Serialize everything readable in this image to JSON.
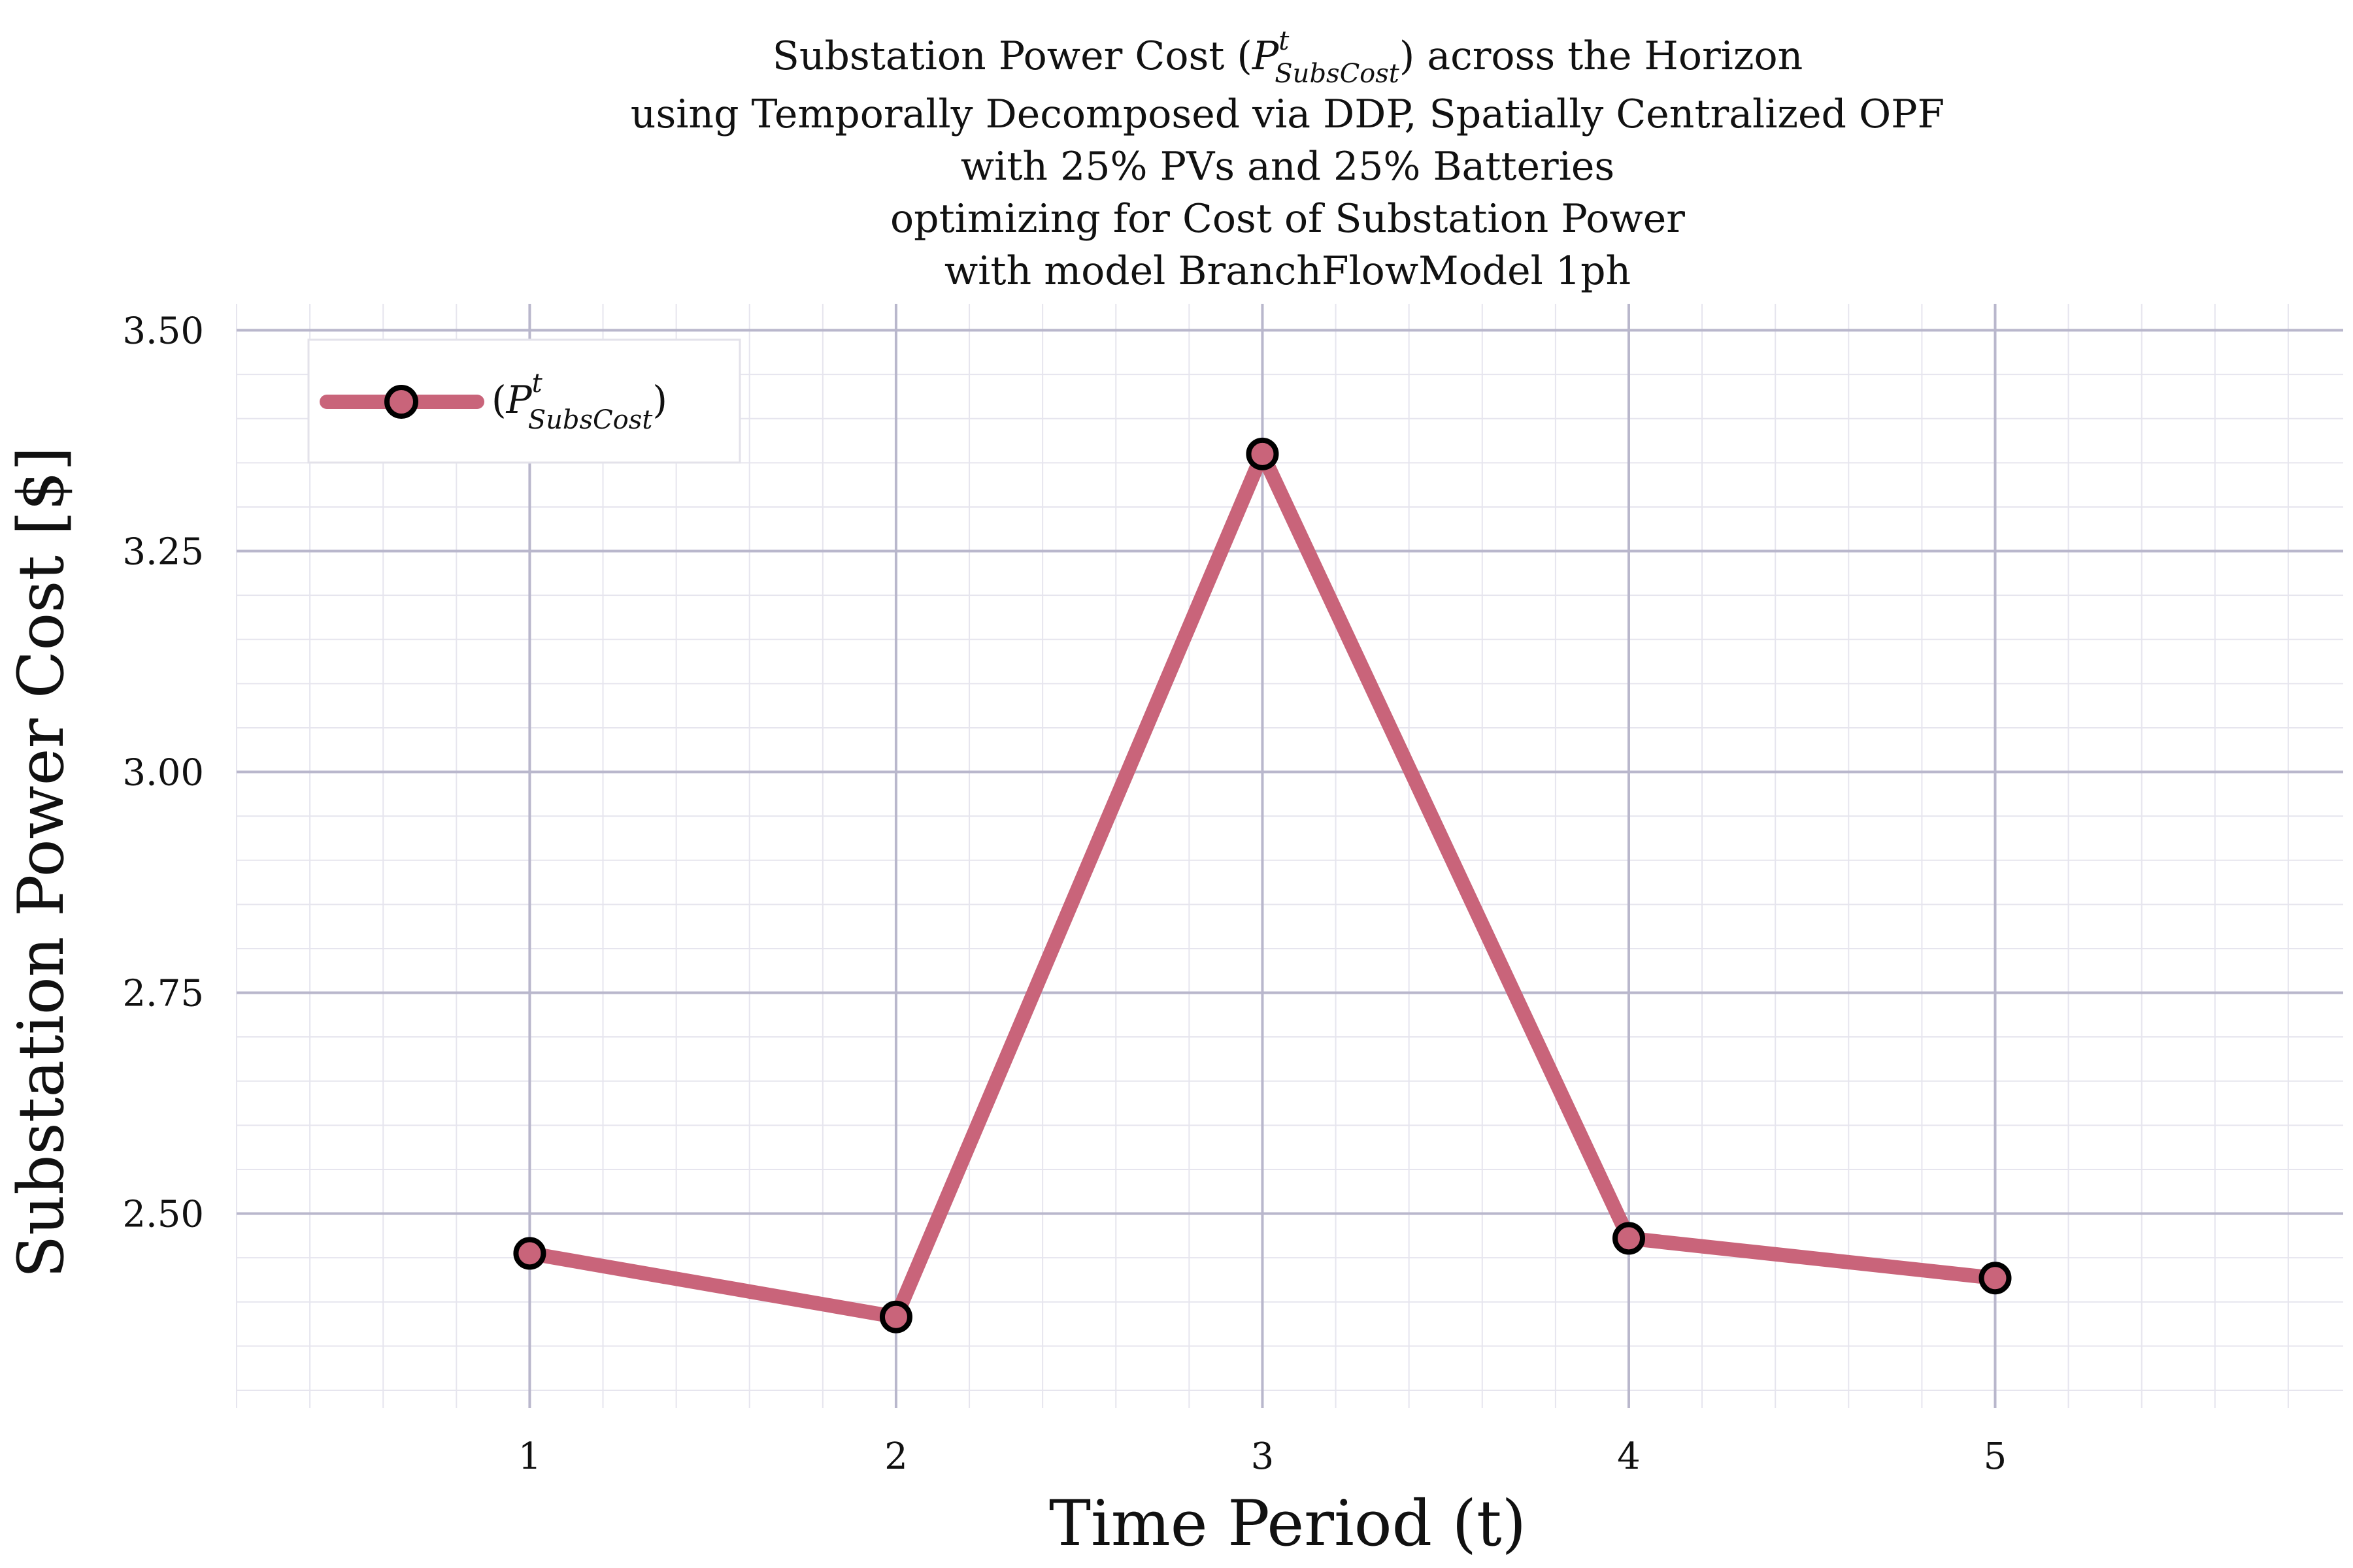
{
  "chart_data": {
    "type": "line",
    "title_lines": [
      "Substation Power Cost (P^t_SubsCost) across the Horizon",
      "using Temporally Decomposed via DDP, Spatially Centralized OPF",
      "with 25% PVs and 25% Batteries",
      "optimizing for Cost of Substation Power",
      "with model BranchFlowModel 1ph"
    ],
    "title_parts": {
      "prefix": "Substation Power Cost (",
      "symbol": "P",
      "superscript": "t",
      "subscript": "SubsCost",
      "suffix": ") across the Horizon"
    },
    "xlabel": "Time Period (t)",
    "ylabel": "Substation Power Cost [$]",
    "x": [
      1,
      2,
      3,
      4,
      5
    ],
    "series": [
      {
        "name": "(P^t_SubsCost)",
        "values": [
          2.455,
          2.383,
          3.36,
          2.472,
          2.427
        ],
        "color": "#c9647a",
        "marker_edge": "#000000"
      }
    ],
    "xlim": [
      0.2,
      5.95
    ],
    "ylim": [
      2.28,
      3.53
    ],
    "xticks": [
      "1",
      "2",
      "3",
      "4",
      "5"
    ],
    "xtick_values": [
      1,
      2,
      3,
      4,
      5
    ],
    "yticks": [
      "2.50",
      "2.75",
      "3.00",
      "3.25",
      "3.50"
    ],
    "ytick_values": [
      2.5,
      2.75,
      3.0,
      3.25,
      3.5
    ],
    "grid": true,
    "minor_grid": true,
    "legend_position": "top-left",
    "grid_color": "#b9b7cc",
    "minor_grid_color": "#e6e5ee"
  }
}
